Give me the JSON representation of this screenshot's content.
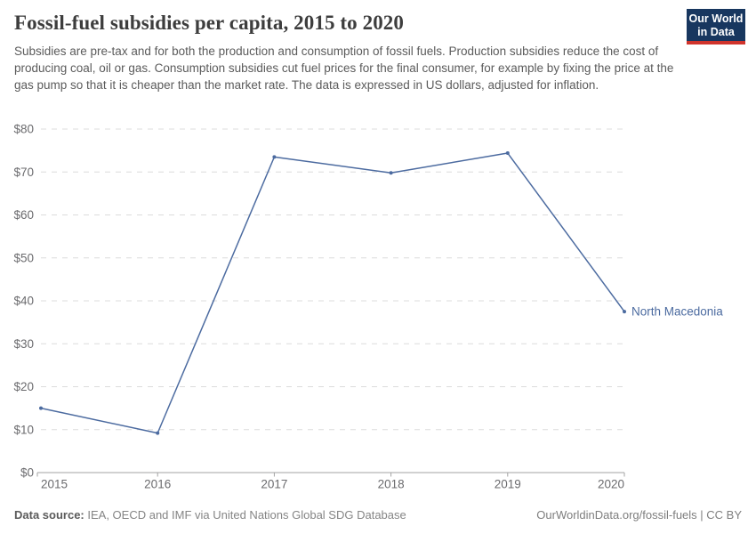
{
  "header": {
    "title": "Fossil-fuel subsidies per capita, 2015 to 2020",
    "subtitle": "Subsidies are pre-tax and for both the production and consumption of fossil fuels. Production subsidies reduce the cost of producing coal, oil or gas. Consumption subsidies cut fuel prices for the final consumer, for example by fixing the price at the gas pump so that it is cheaper than the market rate. The data is expressed in US dollars, adjusted for inflation.",
    "logo": {
      "line1": "Our World",
      "line2": "in Data"
    }
  },
  "chart_data": {
    "type": "line",
    "title": "Fossil-fuel subsidies per capita, 2015 to 2020",
    "x": [
      2015,
      2016,
      2017,
      2018,
      2019,
      2020
    ],
    "series": [
      {
        "name": "North Macedonia",
        "values": [
          15.0,
          9.2,
          73.5,
          69.8,
          74.4,
          37.5
        ]
      }
    ],
    "xlabel": "",
    "ylabel": "",
    "ylim": [
      0,
      80
    ],
    "ytick_step": 10,
    "ytick_prefix": "$",
    "grid": "horizontal dashed",
    "legend": "end-of-line entity label",
    "colors": {
      "line": "#4c6ba0",
      "logo_navy": "#18375f",
      "logo_red": "#d0342c"
    }
  },
  "footer": {
    "source_label": "Data source:",
    "source_text": " IEA, OECD and IMF via United Nations Global SDG Database",
    "credit": "OurWorldinData.org/fossil-fuels | CC BY"
  }
}
